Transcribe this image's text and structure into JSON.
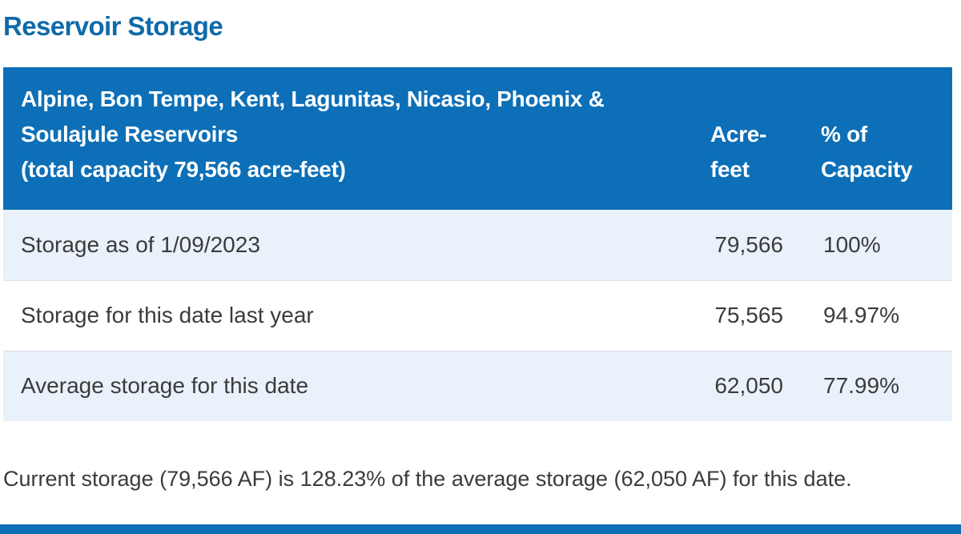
{
  "page": {
    "title": "Reservoir Storage"
  },
  "table": {
    "header": {
      "reservoirs_line1": "Alpine, Bon Tempe, Kent, Lagunitas, Nicasio, Phoenix &",
      "reservoirs_line2": "Soulajule Reservoirs",
      "capacity_line": "(total capacity 79,566 acre-feet)",
      "acre_feet_line1": "Acre-",
      "acre_feet_line2": "feet",
      "percent_line1": "% of",
      "percent_line2": "Capacity"
    },
    "rows": [
      {
        "label": "Storage as of 1/09/2023",
        "acre_feet": "79,566",
        "percent": "100%"
      },
      {
        "label": "Storage for this date last year",
        "acre_feet": "75,565",
        "percent": "94.97%"
      },
      {
        "label": "Average storage for this date",
        "acre_feet": "62,050",
        "percent": "77.99%"
      }
    ]
  },
  "summary": "Current storage (79,566 AF) is 128.23% of the average storage (62,050 AF) for this date.",
  "colors": {
    "brand_blue": "#0c6fb7",
    "title_blue": "#0f6aa9",
    "row_shade": "#e9f1fa",
    "text": "#3b3b3b"
  }
}
